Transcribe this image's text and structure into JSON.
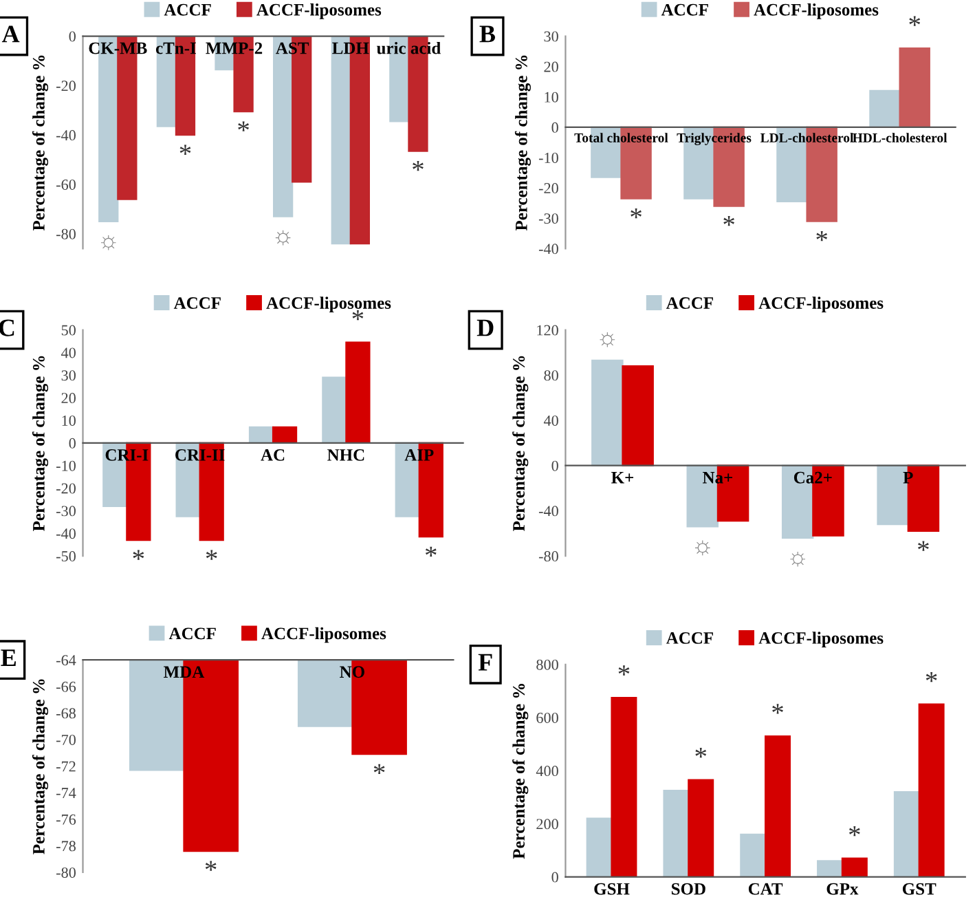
{
  "chart_data": [
    {
      "type": "bar",
      "title": "A",
      "ylabel": "Percentage of change %",
      "categories": [
        "CK-MB",
        "cTn-I",
        "MMP-2",
        "AST",
        "LDH",
        "uric acid"
      ],
      "series": [
        {
          "name": "ACCF",
          "color": "#b9ced8",
          "values": [
            -75,
            -36.5,
            -13.5,
            -73,
            -84,
            -34.5
          ]
        },
        {
          "name": "ACCF-liposomes",
          "color": "#c0262b",
          "values": [
            -66,
            -40,
            -30.5,
            -59,
            -84,
            -46.5
          ]
        }
      ],
      "ylim": [
        -86,
        0
      ],
      "yticks": [
        -80,
        -60,
        -40,
        -20,
        0
      ],
      "legend": "top",
      "annotations": [
        {
          "text": "☼",
          "x": "CK-MB",
          "y": -75
        },
        {
          "text": "*",
          "x": "cTn-I",
          "y": -40
        },
        {
          "text": "*",
          "x": "MMP-2",
          "y": -30.5
        },
        {
          "text": "☼",
          "x": "AST",
          "y": -73
        },
        {
          "text": "*",
          "x": "uric acid",
          "y": -46.5
        }
      ]
    },
    {
      "type": "bar",
      "title": "B",
      "ylabel": "Percentage of change %",
      "categories": [
        "Total cholesterol",
        "Triglycerides",
        "LDL-cholesterol",
        "HDL-cholesterol"
      ],
      "series": [
        {
          "name": "ACCF",
          "color": "#b9ced8",
          "values": [
            -16.5,
            -23.5,
            -24.5,
            12
          ]
        },
        {
          "name": "ACCF-liposomes",
          "color": "#c85a5a",
          "values": [
            -23.5,
            -26,
            -31,
            26
          ]
        }
      ],
      "ylim": [
        -40,
        30
      ],
      "yticks": [
        -40,
        -30,
        -20,
        -10,
        0,
        10,
        20,
        30
      ],
      "legend": "top",
      "annotations": [
        {
          "text": "*",
          "x": "Total cholesterol",
          "y": -23.5
        },
        {
          "text": "*",
          "x": "Triglycerides",
          "y": -26
        },
        {
          "text": "*",
          "x": "LDL-cholesterol",
          "y": -31
        },
        {
          "text": "*",
          "x": "HDL-cholesterol",
          "y": 26
        }
      ]
    },
    {
      "type": "bar",
      "title": "C",
      "ylabel": "Percentage of change %",
      "categories": [
        "CRI-I",
        "CRI-II",
        "AC",
        "NHC",
        "AIP"
      ],
      "series": [
        {
          "name": "ACCF",
          "color": "#b9ced8",
          "values": [
            -28,
            -32.5,
            7,
            29,
            -32.5
          ]
        },
        {
          "name": "ACCF-liposomes",
          "color": "#d40000",
          "values": [
            -43,
            -43,
            7,
            44.5,
            -41.5
          ]
        }
      ],
      "ylim": [
        -50,
        50
      ],
      "yticks": [
        -50,
        -40,
        -30,
        -20,
        -10,
        0,
        10,
        20,
        30,
        40,
        50
      ],
      "legend": "top",
      "annotations": [
        {
          "text": "*",
          "x": "CRI-I",
          "y": -43
        },
        {
          "text": "*",
          "x": "CRI-II",
          "y": -43
        },
        {
          "text": "*",
          "x": "NHC",
          "y": 44.5
        },
        {
          "text": "*",
          "x": "AIP",
          "y": -41.5
        }
      ]
    },
    {
      "type": "bar",
      "title": "D",
      "ylabel": "Percentage of change %",
      "categories": [
        "K+",
        "Na+",
        "Ca2+",
        "P"
      ],
      "series": [
        {
          "name": "ACCF",
          "color": "#b9ced8",
          "values": [
            93,
            -54,
            -64,
            -52
          ]
        },
        {
          "name": "ACCF-liposomes",
          "color": "#d40000",
          "values": [
            88,
            -49,
            -62,
            -58
          ]
        }
      ],
      "ylim": [
        -80,
        120
      ],
      "yticks": [
        -80,
        -40,
        0,
        40,
        80,
        120
      ],
      "legend": "top",
      "annotations": [
        {
          "text": "☼",
          "x": "K+",
          "y": 93
        },
        {
          "text": "☼",
          "x": "Na+",
          "y": -54
        },
        {
          "text": "☼",
          "x": "Ca2+",
          "y": -64
        },
        {
          "text": "*",
          "x": "P",
          "y": -58
        }
      ]
    },
    {
      "type": "bar",
      "title": "E",
      "ylabel": "Percentage of change %",
      "categories": [
        "MDA",
        "NO"
      ],
      "series": [
        {
          "name": "ACCF",
          "color": "#b9ced8",
          "values": [
            -72.3,
            -69
          ]
        },
        {
          "name": "ACCF-liposomes",
          "color": "#d40000",
          "values": [
            -78.4,
            -71.1
          ]
        }
      ],
      "ylim": [
        -80,
        -64
      ],
      "yticks": [
        -80,
        -78,
        -76,
        -74,
        -72,
        -70,
        -68,
        -66,
        -64
      ],
      "legend": "top",
      "annotations": [
        {
          "text": "*",
          "x": "MDA",
          "y": -78.4
        },
        {
          "text": "*",
          "x": "NO",
          "y": -71.1
        }
      ]
    },
    {
      "type": "bar",
      "title": "F",
      "ylabel": "Percentage of change %",
      "categories": [
        "GSH",
        "SOD",
        "CAT",
        "GPx",
        "GST"
      ],
      "series": [
        {
          "name": "ACCF",
          "color": "#b9ced8",
          "values": [
            220,
            325,
            160,
            60,
            320
          ]
        },
        {
          "name": "ACCF-liposomes",
          "color": "#d40000",
          "values": [
            675,
            365,
            530,
            70,
            650
          ]
        }
      ],
      "ylim": [
        0,
        800
      ],
      "yticks": [
        0,
        200,
        400,
        600,
        800
      ],
      "legend": "top",
      "annotations": [
        {
          "text": "*",
          "x": "GSH",
          "y": 675
        },
        {
          "text": "*",
          "x": "SOD",
          "y": 365
        },
        {
          "text": "*",
          "x": "CAT",
          "y": 530
        },
        {
          "text": "*",
          "x": "GPx",
          "y": 70
        },
        {
          "text": "*",
          "x": "GST",
          "y": 650
        }
      ]
    }
  ]
}
